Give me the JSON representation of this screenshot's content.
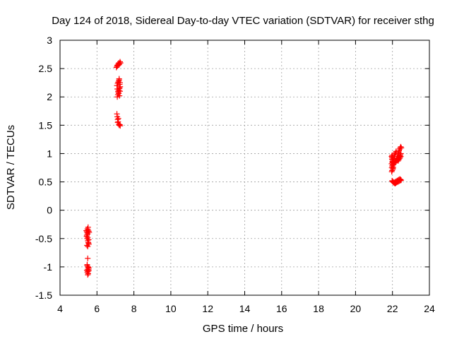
{
  "chart_data": {
    "type": "scatter",
    "title": "Day 124 of 2018, Sidereal Day-to-day VTEC variation (SDTVAR) for receiver sthg",
    "xlabel": "GPS time / hours",
    "ylabel": "SDTVAR / TECUs",
    "xlim": [
      4,
      24
    ],
    "ylim": [
      -1.5,
      3
    ],
    "xticks": [
      "4",
      "6",
      "8",
      "10",
      "12",
      "14",
      "16",
      "18",
      "20",
      "22",
      "24"
    ],
    "yticks": [
      "-1.5",
      "-1",
      "-0.5",
      "0",
      "0.5",
      "1",
      "1.5",
      "2",
      "2.5",
      "3"
    ],
    "grid": true,
    "marker": "+",
    "color": "#ff0000",
    "series": [
      {
        "x": [
          5.42,
          5.45,
          5.48,
          5.5,
          5.52,
          5.55,
          5.58,
          5.44,
          5.47,
          5.5,
          5.53,
          5.56,
          5.46,
          5.5,
          5.54,
          5.48,
          5.52,
          5.45,
          5.5,
          5.55,
          5.47,
          5.52,
          5.56,
          5.5,
          5.45,
          5.5,
          5.55,
          5.48,
          5.53,
          5.5,
          5.47,
          5.52,
          5.5,
          5.55
        ],
        "y": [
          -0.36,
          -0.38,
          -0.4,
          -0.42,
          -0.35,
          -0.37,
          -0.39,
          -0.46,
          -0.5,
          -0.54,
          -0.57,
          -0.6,
          -0.62,
          -0.64,
          -0.58,
          -0.33,
          -0.3,
          -0.44,
          -0.48,
          -0.52,
          -0.98,
          -1.0,
          -1.02,
          -1.04,
          -1.06,
          -1.08,
          -1.05,
          -1.1,
          -1.12,
          -1.14,
          -0.96,
          -1.01,
          -0.85,
          -1.07
        ]
      },
      {
        "x": [
          7.05,
          7.08,
          7.1,
          7.12,
          7.15,
          7.18,
          7.2,
          7.22,
          7.25,
          7.28,
          7.1,
          7.13,
          7.16,
          7.19,
          7.22,
          7.25,
          7.08,
          7.12,
          7.15,
          7.18,
          7.2,
          7.23,
          7.26,
          7.1,
          7.14,
          7.18,
          7.22,
          7.25,
          7.08,
          7.1,
          7.12,
          7.15,
          7.18,
          7.2,
          7.24,
          7.26,
          7.12,
          7.16,
          7.2,
          7.22
        ],
        "y": [
          2.52,
          2.54,
          2.56,
          2.55,
          2.58,
          2.6,
          2.57,
          2.59,
          2.62,
          2.6,
          2.0,
          2.04,
          2.08,
          2.12,
          2.16,
          2.1,
          2.2,
          2.24,
          2.26,
          2.28,
          2.3,
          2.22,
          2.18,
          2.14,
          2.1,
          2.06,
          2.02,
          2.25,
          1.7,
          1.65,
          1.6,
          1.56,
          1.52,
          1.5,
          1.51,
          1.49,
          1.55,
          1.62,
          2.32,
          2.15
        ]
      },
      {
        "x": [
          21.95,
          21.97,
          22.0,
          22.02,
          21.96,
          21.98,
          22.01,
          22.03,
          21.95,
          21.98,
          22.02,
          21.96,
          22.0,
          22.04,
          21.97,
          22.0,
          22.03,
          21.98,
          22.01,
          22.05,
          22.08,
          22.1,
          22.13,
          22.15,
          22.18,
          22.2,
          22.05,
          22.08,
          22.12,
          22.15,
          22.18,
          22.22,
          22.25,
          22.28,
          22.3,
          22.33,
          22.36,
          22.4,
          22.42,
          22.45,
          22.48,
          22.2,
          22.24,
          22.28,
          22.32,
          22.36,
          22.4,
          22.43,
          22.46,
          22.3,
          22.34,
          22.38,
          22.42,
          22.45,
          21.98,
          22.0,
          22.03,
          22.06,
          22.1,
          22.14,
          22.18,
          22.22,
          22.26,
          22.3,
          22.35,
          22.4,
          22.45,
          22.1,
          22.15,
          22.2,
          22.25,
          22.3,
          22.35,
          22.4,
          22.44,
          22.47
        ],
        "y": [
          0.95,
          0.9,
          0.85,
          0.8,
          0.75,
          0.7,
          0.88,
          0.92,
          0.82,
          0.78,
          0.72,
          0.68,
          0.86,
          0.76,
          0.93,
          0.84,
          0.74,
          0.97,
          0.8,
          0.85,
          0.9,
          0.95,
          0.98,
          1.0,
          1.02,
          1.04,
          0.8,
          0.82,
          0.84,
          0.86,
          0.88,
          0.9,
          0.92,
          0.95,
          0.98,
          1.02,
          1.05,
          1.08,
          1.1,
          1.12,
          1.1,
          0.86,
          0.88,
          0.9,
          0.92,
          0.94,
          0.96,
          0.98,
          1.0,
          0.87,
          0.89,
          0.91,
          0.93,
          0.95,
          0.52,
          0.51,
          0.5,
          0.49,
          0.48,
          0.47,
          0.48,
          0.49,
          0.5,
          0.5,
          0.51,
          0.52,
          0.53,
          0.49,
          0.5,
          0.51,
          0.52,
          0.53,
          0.54,
          0.55,
          0.54,
          0.53
        ]
      }
    ]
  }
}
